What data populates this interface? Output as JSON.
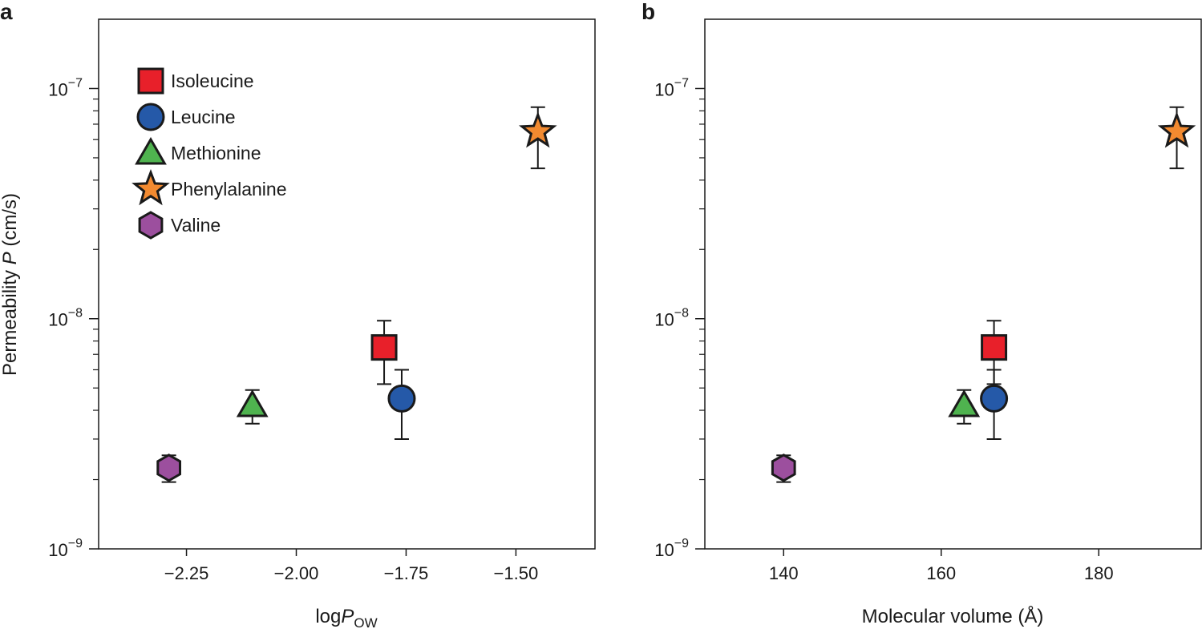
{
  "colors": {
    "Isoleucine": "#e8202a",
    "Leucine": "#2559a8",
    "Methionine": "#4fb34f",
    "Phenylalanine": "#f28a30",
    "Valine": "#9c4f9e",
    "stroke": "#1a1a1a"
  },
  "ylabel": {
    "prefix": "Permeability ",
    "italic": "P",
    "suffix": " (cm/s)"
  },
  "legend": [
    {
      "name": "Isoleucine",
      "shape": "square"
    },
    {
      "name": "Leucine",
      "shape": "circle"
    },
    {
      "name": "Methionine",
      "shape": "triangle"
    },
    {
      "name": "Phenylalanine",
      "shape": "star"
    },
    {
      "name": "Valine",
      "shape": "hexagon"
    }
  ],
  "chart_data": [
    {
      "panel": "a",
      "type": "scatter",
      "xlabel": {
        "base": "log",
        "italic": "P",
        "sub": "OW"
      },
      "xlim": [
        -2.45,
        -1.32
      ],
      "xticks": [
        -2.25,
        -2.0,
        -1.75,
        -1.5
      ],
      "xtick_labels": [
        "−2.25",
        "−2.00",
        "−1.75",
        "−1.50"
      ],
      "yscale": "log",
      "ylim": [
        1e-09,
        2e-07
      ],
      "yticks": [
        1e-09,
        1e-08,
        1e-07
      ],
      "ytick_labels": [
        {
          "base": "10",
          "exp": "−9"
        },
        {
          "base": "10",
          "exp": "−8"
        },
        {
          "base": "10",
          "exp": "−7"
        }
      ],
      "points": [
        {
          "name": "Isoleucine",
          "x": -1.8,
          "y": 7.5e-09,
          "ylow": 5.2e-09,
          "yhigh": 9.8e-09
        },
        {
          "name": "Leucine",
          "x": -1.76,
          "y": 4.5e-09,
          "ylow": 3e-09,
          "yhigh": 6e-09
        },
        {
          "name": "Methionine",
          "x": -2.1,
          "y": 4.2e-09,
          "ylow": 3.5e-09,
          "yhigh": 4.9e-09
        },
        {
          "name": "Phenylalanine",
          "x": -1.45,
          "y": 6.5e-08,
          "ylow": 4.5e-08,
          "yhigh": 8.3e-08
        },
        {
          "name": "Valine",
          "x": -2.29,
          "y": 2.25e-09,
          "ylow": 1.95e-09,
          "yhigh": 2.55e-09
        }
      ]
    },
    {
      "panel": "b",
      "type": "scatter",
      "xlabel": {
        "base": "Molecular volume (Å)",
        "italic": "",
        "sub": ""
      },
      "xlim": [
        130,
        193
      ],
      "xticks": [
        140,
        160,
        180
      ],
      "xtick_labels": [
        "140",
        "160",
        "180"
      ],
      "yscale": "log",
      "ylim": [
        1e-09,
        2e-07
      ],
      "yticks": [
        1e-09,
        1e-08,
        1e-07
      ],
      "ytick_labels": [
        {
          "base": "10",
          "exp": "−9"
        },
        {
          "base": "10",
          "exp": "−8"
        },
        {
          "base": "10",
          "exp": "−7"
        }
      ],
      "points": [
        {
          "name": "Isoleucine",
          "x": 166.7,
          "y": 7.5e-09,
          "ylow": 5.2e-09,
          "yhigh": 9.8e-09
        },
        {
          "name": "Leucine",
          "x": 166.7,
          "y": 4.5e-09,
          "ylow": 3e-09,
          "yhigh": 6e-09
        },
        {
          "name": "Methionine",
          "x": 162.9,
          "y": 4.2e-09,
          "ylow": 3.5e-09,
          "yhigh": 4.9e-09
        },
        {
          "name": "Phenylalanine",
          "x": 189.9,
          "y": 6.5e-08,
          "ylow": 4.5e-08,
          "yhigh": 8.3e-08
        },
        {
          "name": "Valine",
          "x": 140.0,
          "y": 2.25e-09,
          "ylow": 1.95e-09,
          "yhigh": 2.55e-09
        }
      ]
    }
  ]
}
